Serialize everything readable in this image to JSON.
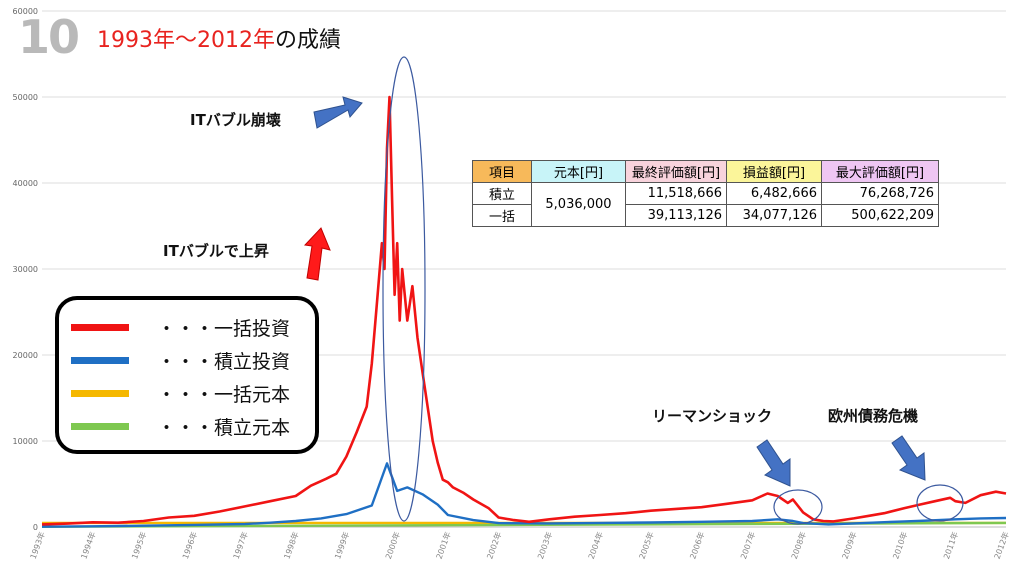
{
  "slide": {
    "number": "10",
    "title_red": "1993年〜2012年",
    "title_black": "の成績"
  },
  "annotations": {
    "bubble_burst": "ITバブル崩壊",
    "bubble_rise": "ITバブルで上昇",
    "lehman": "リーマンショック",
    "euro_crisis": "欧州債務危機"
  },
  "legend": [
    {
      "label": "・・・一括投資",
      "color": "#f01414"
    },
    {
      "label": "・・・積立投資",
      "color": "#1f6fc4"
    },
    {
      "label": "・・・一括元本",
      "color": "#f5b800"
    },
    {
      "label": "・・・積立元本",
      "color": "#7ec850"
    }
  ],
  "table": {
    "headers": [
      "項目",
      "元本[円]",
      "最終評価額[円]",
      "損益額[円]",
      "最大評価額[円]"
    ],
    "header_colors": [
      "#f7b95a",
      "#c8f4f8",
      "#f8d3dc",
      "#fbf59a",
      "#efc6f3"
    ],
    "principal": "5,036,000",
    "rows": [
      {
        "item": "積立",
        "final": "11,518,666",
        "profit": "6,482,666",
        "max": "76,268,726"
      },
      {
        "item": "一括",
        "final": "39,113,126",
        "profit": "34,077,126",
        "max": "500,622,209"
      }
    ]
  },
  "chart_data": {
    "type": "line",
    "ylim": [
      0,
      60000
    ],
    "yticks": [
      "0",
      "10000",
      "20000",
      "30000",
      "40000",
      "50000",
      "60000"
    ],
    "x_categories": [
      "1993年",
      "1994年",
      "1995年",
      "1996年",
      "1997年",
      "1998年",
      "1999年",
      "2000年",
      "2001年",
      "2002年",
      "2003年",
      "2004年",
      "2005年",
      "2006年",
      "2007年",
      "2008年",
      "2009年",
      "2010年",
      "2011年",
      "2012年"
    ],
    "grid": true,
    "series": [
      {
        "name": "一括投資",
        "color": "#f01414",
        "x": [
          1993.0,
          1993.5,
          1994.0,
          1994.5,
          1995.0,
          1995.5,
          1996.0,
          1996.5,
          1997.0,
          1997.5,
          1998.0,
          1998.3,
          1998.6,
          1998.8,
          1999.0,
          1999.2,
          1999.4,
          1999.5,
          1999.6,
          1999.7,
          1999.75,
          1999.8,
          1999.85,
          1999.9,
          1999.95,
          2000.0,
          2000.05,
          2000.1,
          2000.2,
          2000.3,
          2000.4,
          2000.5,
          2000.6,
          2000.7,
          2000.8,
          2000.9,
          2001.0,
          2001.1,
          2001.3,
          2001.5,
          2001.8,
          2002.0,
          2002.3,
          2002.6,
          2003.0,
          2003.5,
          2004.0,
          2004.5,
          2005.0,
          2005.5,
          2006.0,
          2006.5,
          2007.0,
          2007.3,
          2007.5,
          2007.7,
          2007.8,
          2008.0,
          2008.2,
          2008.4,
          2008.6,
          2009.0,
          2009.3,
          2009.6,
          2010.0,
          2010.3,
          2010.6,
          2010.9,
          2011.0,
          2011.2,
          2011.5,
          2011.8,
          2012.0
        ],
        "y": [
          300,
          400,
          550,
          500,
          700,
          1100,
          1300,
          1800,
          2400,
          3000,
          3600,
          4800,
          5600,
          6200,
          8200,
          11000,
          14000,
          19000,
          26000,
          33000,
          30000,
          44000,
          50000,
          38000,
          27000,
          33000,
          24000,
          30000,
          24000,
          28000,
          22000,
          18000,
          14000,
          10000,
          7500,
          5500,
          5200,
          4600,
          4000,
          3200,
          2200,
          1100,
          800,
          600,
          900,
          1200,
          1400,
          1600,
          1900,
          2100,
          2300,
          2700,
          3100,
          3900,
          3600,
          2800,
          3200,
          1700,
          900,
          700,
          650,
          1000,
          1300,
          1600,
          2200,
          2600,
          3000,
          3400,
          3000,
          2800,
          3700,
          4100,
          3900
        ]
      },
      {
        "name": "積立投資",
        "color": "#1f6fc4",
        "x": [
          1993.0,
          1994.0,
          1995.0,
          1996.0,
          1997.0,
          1997.5,
          1998.0,
          1998.5,
          1999.0,
          1999.5,
          1999.8,
          2000.0,
          2000.2,
          2000.5,
          2000.8,
          2001.0,
          2001.5,
          2002.0,
          2003.0,
          2004.0,
          2005.0,
          2006.0,
          2007.0,
          2007.5,
          2007.8,
          2008.0,
          2008.5,
          2009.0,
          2010.0,
          2010.5,
          2011.0,
          2011.5,
          2012.0
        ],
        "y": [
          30,
          80,
          150,
          240,
          350,
          500,
          700,
          1000,
          1500,
          2500,
          7400,
          4200,
          4600,
          3800,
          2600,
          1400,
          800,
          450,
          420,
          480,
          520,
          600,
          700,
          900,
          700,
          450,
          300,
          420,
          650,
          750,
          900,
          1000,
          1050
        ]
      },
      {
        "name": "一括元本",
        "color": "#f5b800",
        "x": [
          1993.0,
          2012.0
        ],
        "y": [
          480,
          480
        ]
      },
      {
        "name": "積立元本",
        "color": "#7ec850",
        "x": [
          1993.0,
          2012.0
        ],
        "y": [
          20,
          480
        ]
      }
    ]
  }
}
